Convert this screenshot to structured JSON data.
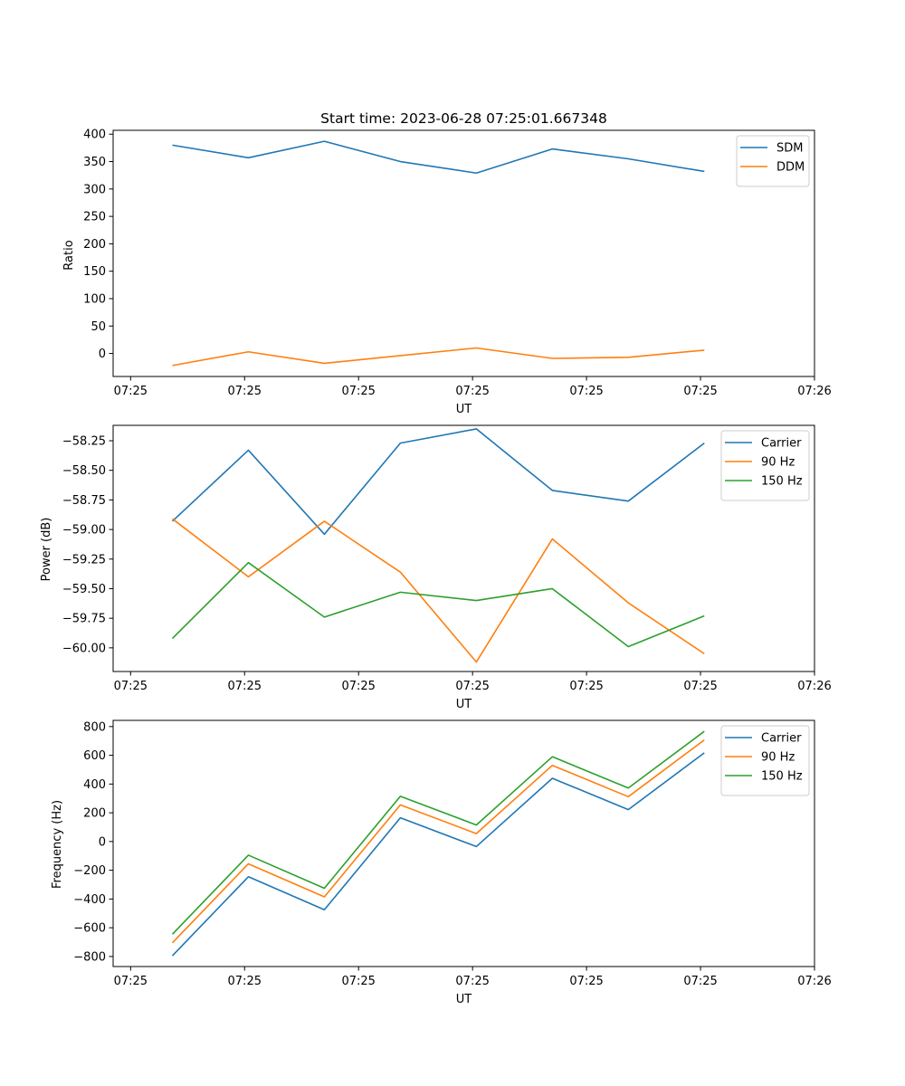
{
  "chart_data": [
    {
      "type": "line",
      "title": "Start time: 2023-06-28 07:25:01.667348",
      "xlabel": "UT",
      "ylabel": "Ratio",
      "x": [
        1,
        2,
        3,
        4,
        5,
        6,
        7,
        8
      ],
      "xlim": [
        0.22,
        9.45
      ],
      "ylim": [
        -42,
        407
      ],
      "xticks": [
        0.45,
        1.95,
        3.45,
        4.95,
        6.45,
        7.95,
        9.45
      ],
      "xtick_labels": [
        "07:25",
        "07:25",
        "07:25",
        "07:25",
        "07:25",
        "07:25",
        "07:26"
      ],
      "yticks": [
        0,
        50,
        100,
        150,
        200,
        250,
        300,
        350,
        400
      ],
      "ytick_labels": [
        "0",
        "50",
        "100",
        "150",
        "200",
        "250",
        "300",
        "350",
        "400"
      ],
      "legend": "top-right",
      "series": [
        {
          "name": "SDM",
          "color": "#1f77b4",
          "values": [
            380,
            357,
            387,
            350,
            329,
            373,
            355,
            332
          ]
        },
        {
          "name": "DDM",
          "color": "#ff7f0e",
          "values": [
            -22,
            3,
            -18,
            -4,
            10,
            -9,
            -7,
            6
          ]
        }
      ]
    },
    {
      "type": "line",
      "title": "",
      "xlabel": "UT",
      "ylabel": "Power (dB)",
      "x": [
        1,
        2,
        3,
        4,
        5,
        6,
        7,
        8
      ],
      "xlim": [
        0.22,
        9.45
      ],
      "ylim": [
        -60.2,
        -58.12
      ],
      "xticks": [
        0.45,
        1.95,
        3.45,
        4.95,
        6.45,
        7.95,
        9.45
      ],
      "xtick_labels": [
        "07:25",
        "07:25",
        "07:25",
        "07:25",
        "07:25",
        "07:25",
        "07:26"
      ],
      "yticks": [
        -60.0,
        -59.75,
        -59.5,
        -59.25,
        -59.0,
        -58.75,
        -58.5,
        -58.25
      ],
      "ytick_labels": [
        "−60.00",
        "−59.75",
        "−59.50",
        "−59.25",
        "−59.00",
        "−58.75",
        "−58.50",
        "−58.25"
      ],
      "legend": "top-right",
      "series": [
        {
          "name": "Carrier",
          "color": "#1f77b4",
          "values": [
            -58.93,
            -58.33,
            -59.04,
            -58.27,
            -58.15,
            -58.67,
            -58.76,
            -58.27
          ]
        },
        {
          "name": "90 Hz",
          "color": "#ff7f0e",
          "values": [
            -58.91,
            -59.4,
            -58.93,
            -59.36,
            -60.12,
            -59.08,
            -59.62,
            -60.05
          ]
        },
        {
          "name": "150 Hz",
          "color": "#2ca02c",
          "values": [
            -59.92,
            -59.28,
            -59.74,
            -59.53,
            -59.6,
            -59.5,
            -59.99,
            -59.73
          ]
        }
      ]
    },
    {
      "type": "line",
      "title": "",
      "xlabel": "UT",
      "ylabel": "Frequency (Hz)",
      "x": [
        1,
        2,
        3,
        4,
        5,
        6,
        7,
        8
      ],
      "xlim": [
        0.22,
        9.45
      ],
      "ylim": [
        -870,
        843
      ],
      "xticks": [
        0.45,
        1.95,
        3.45,
        4.95,
        6.45,
        7.95,
        9.45
      ],
      "xtick_labels": [
        "07:25",
        "07:25",
        "07:25",
        "07:25",
        "07:25",
        "07:25",
        "07:26"
      ],
      "yticks": [
        -800,
        -600,
        -400,
        -200,
        0,
        200,
        400,
        600,
        800
      ],
      "ytick_labels": [
        "−800",
        "−600",
        "−400",
        "−200",
        "0",
        "200",
        "400",
        "600",
        "800"
      ],
      "legend": "top-right",
      "series": [
        {
          "name": "Carrier",
          "color": "#1f77b4",
          "values": [
            -795,
            -245,
            -475,
            165,
            -35,
            440,
            222,
            617
          ]
        },
        {
          "name": "90 Hz",
          "color": "#ff7f0e",
          "values": [
            -705,
            -155,
            -385,
            255,
            55,
            530,
            312,
            707
          ]
        },
        {
          "name": "150 Hz",
          "color": "#2ca02c",
          "values": [
            -645,
            -95,
            -325,
            315,
            115,
            590,
            372,
            767
          ]
        }
      ]
    }
  ]
}
